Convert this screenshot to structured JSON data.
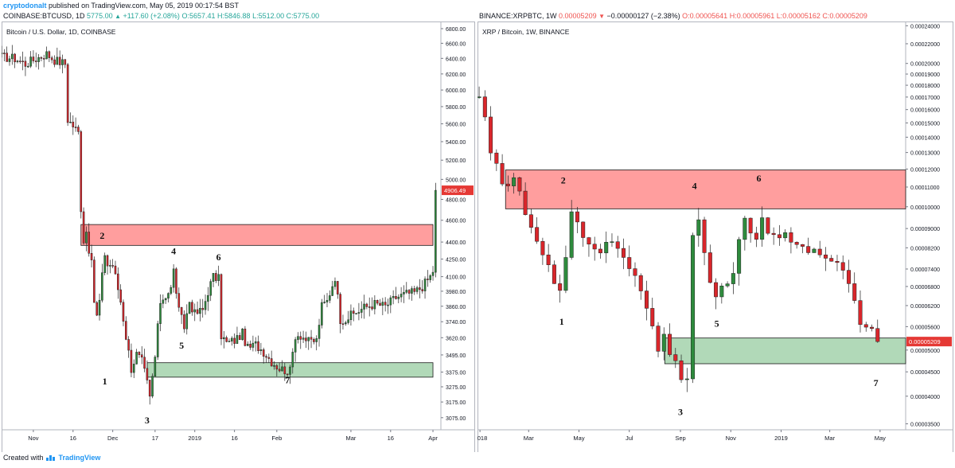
{
  "header": {
    "author": "cryptodonalt",
    "published_text": "published on TradingView.com, May 05, 2019 00:17:54 BST"
  },
  "footer": {
    "created_with": "Created with",
    "brand": "TradingView"
  },
  "colors": {
    "up": "#2e8b3d",
    "down": "#d9262b",
    "supply_zone": "#ff9494",
    "demand_zone": "#a8d5b0",
    "price_badge": "#e53935"
  },
  "chart_data": [
    {
      "type": "candlestick",
      "info": {
        "symbol": "COINBASE:BTCUSD, 1D",
        "last": "5775.00",
        "change": "+117.60 (+2.08%)",
        "ohlc_o": "O:5657.41",
        "ohlc_h": "H:5846.88",
        "ohlc_l": "L:5512.00",
        "ohlc_c": "C:5775.00"
      },
      "title": "Bitcoin / U.S. Dollar, 1D, COINBASE",
      "y_ticks": [
        "6800.00",
        "6600.00",
        "6400.00",
        "6200.00",
        "6000.00",
        "5800.00",
        "5600.00",
        "5400.00",
        "5200.00",
        "5000.00",
        "4800.00",
        "4600.00",
        "4400.00",
        "4250.00",
        "4100.00",
        "3980.00",
        "3860.00",
        "3740.00",
        "3620.00",
        "3495.00",
        "3375.00",
        "3275.00",
        "3175.00",
        "3075.00"
      ],
      "x_ticks": [
        "Nov",
        "16",
        "Dec",
        "17",
        "2019",
        "16",
        "Feb",
        "Mar",
        "16",
        "Apr"
      ],
      "price_label": "4906.49",
      "y_scale": "log",
      "ylim": [
        3000,
        6900
      ],
      "zones": [
        {
          "kind": "supply",
          "from": "Nov 19",
          "to": "Apr 1",
          "low": 4370,
          "high": 4560
        },
        {
          "kind": "demand",
          "from": "Dec 14",
          "to": "Apr 1",
          "low": 3340,
          "high": 3440
        }
      ],
      "annotations": [
        {
          "text": "1",
          "x": "Nov 28",
          "y": 3290
        },
        {
          "text": "2",
          "x": "Nov 27",
          "y": 4430
        },
        {
          "text": "3",
          "x": "Dec 14",
          "y": 3040
        },
        {
          "text": "4",
          "x": "Dec 24",
          "y": 4290
        },
        {
          "text": "5",
          "x": "Dec 27",
          "y": 3540
        },
        {
          "text": "6",
          "x": "Jan 10",
          "y": 4240
        },
        {
          "text": "7",
          "x": "Feb 5",
          "y": 3300
        }
      ],
      "path": [
        [
          "Oct 20",
          6420
        ],
        [
          "Oct 25",
          6400
        ],
        [
          "Oct 29",
          6330
        ],
        [
          "Nov 1",
          6380
        ],
        [
          "Nov 6",
          6460
        ],
        [
          "Nov 9",
          6380
        ],
        [
          "Nov 13",
          6330
        ],
        [
          "Nov 14",
          5650
        ],
        [
          "Nov 16",
          5580
        ],
        [
          "Nov 18",
          5500
        ],
        [
          "Nov 19",
          4720
        ],
        [
          "Nov 20",
          4420
        ],
        [
          "Nov 21",
          4500
        ],
        [
          "Nov 22",
          4340
        ],
        [
          "Nov 23",
          4200
        ],
        [
          "Nov 24",
          3900
        ],
        [
          "Nov 25",
          3780
        ],
        [
          "Nov 26",
          3900
        ],
        [
          "Nov 28",
          4300
        ],
        [
          "Nov 29",
          4200
        ],
        [
          "Dec 1",
          4200
        ],
        [
          "Dec 3",
          4000
        ],
        [
          "Dec 4",
          3900
        ],
        [
          "Dec 6",
          3630
        ],
        [
          "Dec 8",
          3400
        ],
        [
          "Dec 10",
          3500
        ],
        [
          "Dec 12",
          3450
        ],
        [
          "Dec 14",
          3300
        ],
        [
          "Dec 15",
          3200
        ],
        [
          "Dec 17",
          3480
        ],
        [
          "Dec 19",
          3900
        ],
        [
          "Dec 21",
          3950
        ],
        [
          "Dec 23",
          4000
        ],
        [
          "Dec 24",
          4150
        ],
        [
          "Dec 26",
          3820
        ],
        [
          "Dec 28",
          3700
        ],
        [
          "Dec 30",
          3900
        ],
        [
          "Jan 1",
          3800
        ],
        [
          "Jan 4",
          3830
        ],
        [
          "Jan 6",
          3980
        ],
        [
          "Jan 8",
          4100
        ],
        [
          "Jan 10",
          4080
        ],
        [
          "Jan 11",
          3640
        ],
        [
          "Jan 13",
          3580
        ],
        [
          "Jan 16",
          3600
        ],
        [
          "Jan 19",
          3650
        ],
        [
          "Jan 21",
          3540
        ],
        [
          "Jan 24",
          3570
        ],
        [
          "Jan 27",
          3520
        ],
        [
          "Jan 30",
          3450
        ],
        [
          "Feb 2",
          3400
        ],
        [
          "Feb 6",
          3380
        ],
        [
          "Feb 8",
          3640
        ],
        [
          "Feb 10",
          3640
        ],
        [
          "Feb 13",
          3590
        ],
        [
          "Feb 16",
          3600
        ],
        [
          "Feb 18",
          3860
        ],
        [
          "Feb 20",
          3900
        ],
        [
          "Feb 23",
          4100
        ],
        [
          "Feb 25",
          3760
        ],
        [
          "Feb 27",
          3760
        ],
        [
          "Mar 2",
          3800
        ],
        [
          "Mar 6",
          3850
        ],
        [
          "Mar 10",
          3880
        ],
        [
          "Mar 14",
          3860
        ],
        [
          "Mar 18",
          3930
        ],
        [
          "Mar 22",
          3960
        ],
        [
          "Mar 25",
          3970
        ],
        [
          "Mar 28",
          4020
        ],
        [
          "Mar 31",
          4100
        ],
        [
          "Apr 1",
          4150
        ],
        [
          "Apr 2",
          4890
        ]
      ]
    },
    {
      "type": "candlestick",
      "info": {
        "symbol": "BINANCE:XRPBTC, 1W",
        "last": "0.00005209",
        "change": "−0.00000127 (−2.38%)",
        "ohlc_o": "O:0.00005641",
        "ohlc_h": "H:0.00005961",
        "ohlc_l": "L:0.00005162",
        "ohlc_c": "C:0.00005209"
      },
      "title": "XRP / Bitcoin, 1W, BINANCE",
      "y_ticks": [
        "0.00024000",
        "0.00022000",
        "0.00020000",
        "0.00019000",
        "0.00018000",
        "0.00017000",
        "0.00016000",
        "0.00015000",
        "0.00014000",
        "0.00013000",
        "0.00012000",
        "0.00011000",
        "0.00010000",
        "0.00009000",
        "0.00008200",
        "0.00007400",
        "0.00006800",
        "0.00006200",
        "0.00005600",
        "0.00005000",
        "0.00004500",
        "0.00004000",
        "0.00003500"
      ],
      "x_ticks": [
        "018",
        "Mar",
        "May",
        "Jul",
        "Sep",
        "Nov",
        "2019",
        "Mar",
        "May"
      ],
      "price_label": "0.00005209",
      "y_scale": "log",
      "ylim": [
        3.4e-05,
        0.000245
      ],
      "zones": [
        {
          "kind": "supply",
          "from": "2018-02-01",
          "to": "2019-06-01",
          "low": 9.9e-05,
          "high": 0.0001195
        },
        {
          "kind": "demand",
          "from": "2018-08-13",
          "to": "2019-06-01",
          "low": 4.68e-05,
          "high": 5.3e-05
        }
      ],
      "annotations": [
        {
          "text": "1",
          "x": "2018-04-10",
          "y": 5.65e-05
        },
        {
          "text": "2",
          "x": "2018-04-12",
          "y": 0.000112
        },
        {
          "text": "3",
          "x": "2018-09-01",
          "y": 3.65e-05
        },
        {
          "text": "4",
          "x": "2018-09-18",
          "y": 0.000109
        },
        {
          "text": "5",
          "x": "2018-10-15",
          "y": 5.6e-05
        },
        {
          "text": "6",
          "x": "2018-12-05",
          "y": 0.000113
        },
        {
          "text": "7",
          "x": "2019-04-26",
          "y": 4.2e-05
        }
      ],
      "path": [
        [
          "2017-12-31",
          0.00017
        ],
        [
          "2018-01-07",
          0.00015
        ],
        [
          "2018-01-14",
          0.00013
        ],
        [
          "2018-01-21",
          0.00012
        ],
        [
          "2018-01-28",
          0.000115
        ],
        [
          "2018-02-04",
          0.000108
        ],
        [
          "2018-02-11",
          0.000115
        ],
        [
          "2018-02-18",
          0.000105
        ],
        [
          "2018-02-25",
          9.5e-05
        ],
        [
          "2018-03-04",
          9e-05
        ],
        [
          "2018-03-11",
          8.6e-05
        ],
        [
          "2018-03-18",
          8e-05
        ],
        [
          "2018-03-25",
          7.5e-05
        ],
        [
          "2018-04-01",
          7e-05
        ],
        [
          "2018-04-08",
          6.8e-05
        ],
        [
          "2018-04-15",
          7.6e-05
        ],
        [
          "2018-04-22",
          9.8e-05
        ],
        [
          "2018-04-29",
          9.2e-05
        ],
        [
          "2018-05-06",
          8.8e-05
        ],
        [
          "2018-05-13",
          8.5e-05
        ],
        [
          "2018-05-20",
          8.3e-05
        ],
        [
          "2018-05-27",
          8e-05
        ],
        [
          "2018-06-03",
          8.2e-05
        ],
        [
          "2018-06-10",
          8.6e-05
        ],
        [
          "2018-06-17",
          8.2e-05
        ],
        [
          "2018-06-24",
          8e-05
        ],
        [
          "2018-07-01",
          7.6e-05
        ],
        [
          "2018-07-08",
          7.2e-05
        ],
        [
          "2018-07-15",
          6.8e-05
        ],
        [
          "2018-07-22",
          6.2e-05
        ],
        [
          "2018-07-29",
          5.5e-05
        ],
        [
          "2018-08-05",
          5e-05
        ],
        [
          "2018-08-12",
          5.5e-05
        ],
        [
          "2018-08-19",
          5e-05
        ],
        [
          "2018-08-26",
          4.8e-05
        ],
        [
          "2018-09-02",
          4.4e-05
        ],
        [
          "2018-09-09",
          4.3e-05
        ],
        [
          "2018-09-16",
          8.8e-05
        ],
        [
          "2018-09-23",
          9.2e-05
        ],
        [
          "2018-09-30",
          7.8e-05
        ],
        [
          "2018-10-07",
          6.8e-05
        ],
        [
          "2018-10-14",
          6.5e-05
        ],
        [
          "2018-10-21",
          6.9e-05
        ],
        [
          "2018-10-28",
          7e-05
        ],
        [
          "2018-11-04",
          7.3e-05
        ],
        [
          "2018-11-11",
          8.7e-05
        ],
        [
          "2018-11-18",
          9.2e-05
        ],
        [
          "2018-11-25",
          9e-05
        ],
        [
          "2018-12-02",
          8.8e-05
        ],
        [
          "2018-12-09",
          9.5e-05
        ],
        [
          "2018-12-16",
          9e-05
        ],
        [
          "2018-12-23",
          8.9e-05
        ],
        [
          "2018-12-30",
          8.8e-05
        ],
        [
          "2019-01-06",
          8.7e-05
        ],
        [
          "2019-01-13",
          8.6e-05
        ],
        [
          "2019-01-20",
          8.4e-05
        ],
        [
          "2019-01-27",
          8.3e-05
        ],
        [
          "2019-02-03",
          8.1e-05
        ],
        [
          "2019-02-10",
          8.1e-05
        ],
        [
          "2019-02-17",
          7.9e-05
        ],
        [
          "2019-02-24",
          8e-05
        ],
        [
          "2019-03-03",
          7.8e-05
        ],
        [
          "2019-03-10",
          7.6e-05
        ],
        [
          "2019-03-17",
          7.2e-05
        ],
        [
          "2019-03-24",
          6.8e-05
        ],
        [
          "2019-03-31",
          6.2e-05
        ],
        [
          "2019-04-07",
          5.8e-05
        ],
        [
          "2019-04-14",
          5.6e-05
        ],
        [
          "2019-04-21",
          5.4e-05
        ],
        [
          "2019-04-28",
          5.21e-05
        ]
      ]
    }
  ]
}
